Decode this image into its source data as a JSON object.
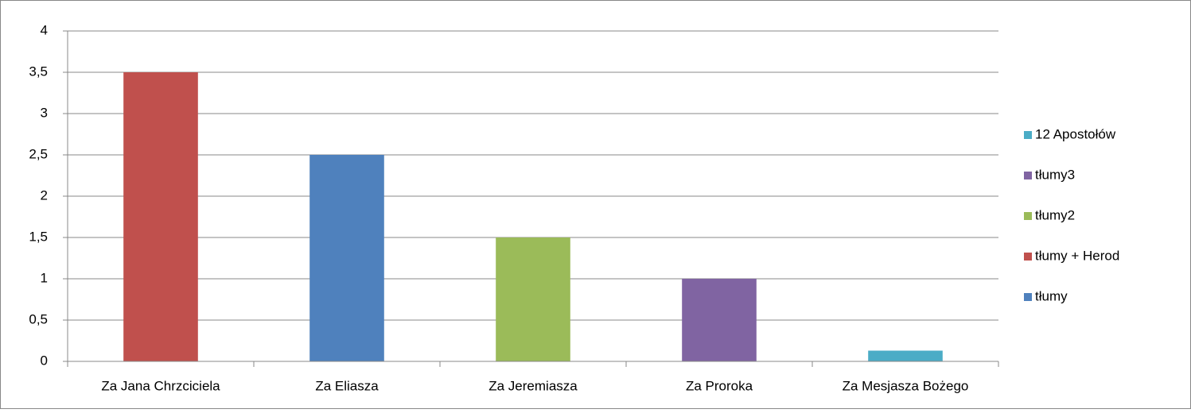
{
  "chart_data": {
    "type": "stacked_bar",
    "categories": [
      "Za Jana Chrzciciela",
      "Za Eliasza",
      "Za Jeremiasza",
      "Za Proroka",
      "Za Mesjasza Bożego"
    ],
    "series": [
      {
        "name": "tłumy",
        "color": "#4f81bd",
        "values": [
          0,
          2.5,
          0,
          0,
          0
        ]
      },
      {
        "name": "tłumy + Herod",
        "color": "#c0504d",
        "values": [
          3.5,
          0,
          0,
          0,
          0
        ]
      },
      {
        "name": "tłumy2",
        "color": "#9bbb59",
        "values": [
          0,
          0,
          1.5,
          0,
          0
        ]
      },
      {
        "name": "tłumy3",
        "color": "#8064a2",
        "values": [
          0,
          0,
          0,
          1,
          0
        ]
      },
      {
        "name": "12 Apostołów",
        "color": "#4bacc6",
        "values": [
          0,
          0,
          0,
          0,
          0.13
        ]
      }
    ],
    "ylim": [
      0,
      4
    ],
    "yticks": [
      0,
      {
        "value": 0.5,
        "label": "0,5"
      },
      1,
      {
        "value": 1.5,
        "label": "1,5"
      },
      2,
      {
        "value": 2.5,
        "label": "2,5"
      },
      3,
      {
        "value": 3.5,
        "label": "3,5"
      },
      4
    ],
    "grid": true,
    "legend": "right"
  }
}
